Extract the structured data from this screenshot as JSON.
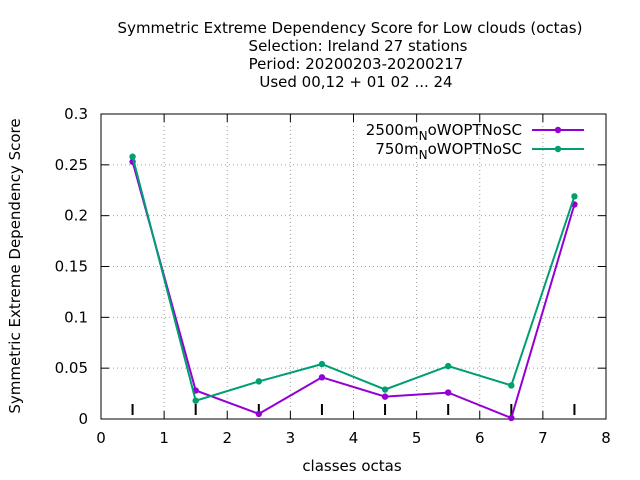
{
  "chart_data": {
    "type": "line",
    "title_lines": [
      "Symmetric Extreme Dependency Score  for Low clouds (octas)",
      "Selection: Ireland     27 stations",
      "Period: 20200203-20200217",
      "Used  00,12  + 01 02 ... 24"
    ],
    "xlabel": "classes octas",
    "ylabel": "Symmetric Extreme Dependency Score",
    "xlim": [
      0,
      8
    ],
    "ylim": [
      0,
      0.3
    ],
    "x_ticks": [
      "0",
      "1",
      "2",
      "3",
      "4",
      "5",
      "6",
      "7",
      "8"
    ],
    "y_ticks": [
      "0",
      "0.05",
      "0.1",
      "0.15",
      "0.2",
      "0.25",
      "0.3"
    ],
    "grid": true,
    "legend_position": "top-right",
    "x": [
      0.5,
      1.5,
      2.5,
      3.5,
      4.5,
      5.5,
      6.5,
      7.5
    ],
    "series": [
      {
        "name": "2500m",
        "name_sub": "N",
        "name_suffix": "oWOPTNoSC",
        "color": "#9400d3",
        "values": [
          0.253,
          0.028,
          0.005,
          0.041,
          0.022,
          0.026,
          0.001,
          0.211
        ]
      },
      {
        "name": "750m",
        "name_sub": "N",
        "name_suffix": "oWOPTNoSC",
        "color": "#009e73",
        "values": [
          0.258,
          0.018,
          0.037,
          0.054,
          0.029,
          0.052,
          0.033,
          0.219
        ]
      }
    ]
  }
}
